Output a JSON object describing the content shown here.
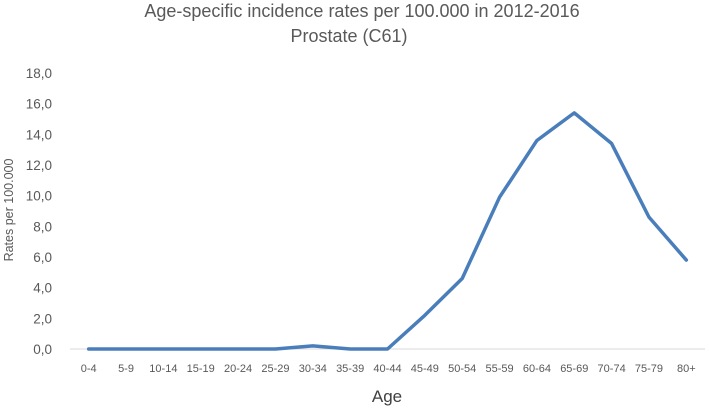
{
  "chart_data": {
    "type": "line",
    "title": "Age-specific incidence rates per 100.000 in 2012-2016",
    "subtitle": "Prostate (C61)",
    "xlabel": "Age",
    "ylabel": "Rates per 100.000",
    "categories": [
      "0-4",
      "5-9",
      "10-14",
      "15-19",
      "20-24",
      "25-29",
      "30-34",
      "35-39",
      "40-44",
      "45-49",
      "50-54",
      "55-59",
      "60-64",
      "65-69",
      "70-74",
      "75-79",
      "80+"
    ],
    "series": [
      {
        "values": [
          0.0,
          0.0,
          0.0,
          0.0,
          0.0,
          0.0,
          0.2,
          0.0,
          0.0,
          2.2,
          4.6,
          9.9,
          13.6,
          15.4,
          13.4,
          8.6,
          5.8
        ],
        "color": "#4a7ebb"
      }
    ],
    "ylim": [
      0,
      18
    ],
    "yticks": [
      "0,0",
      "2,0",
      "4,0",
      "6,0",
      "8,0",
      "10,0",
      "12,0",
      "14,0",
      "16,0",
      "18,0"
    ],
    "grid": false,
    "legend": "none"
  }
}
